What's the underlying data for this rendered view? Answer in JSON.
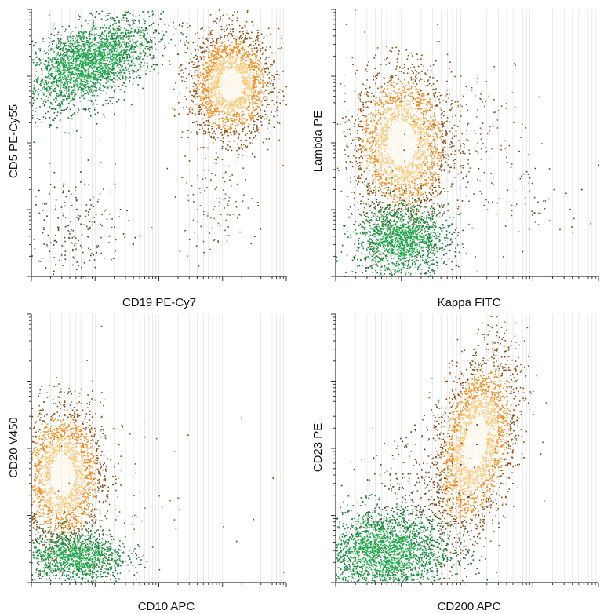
{
  "chart_data": [
    {
      "type": "scatter",
      "plot_style": "flow-cytometry density dot plot",
      "xlabel": "CD19 PE-Cy7",
      "ylabel": "CD5 PE-Cy55",
      "title": "",
      "x_scale": "log",
      "y_scale": "log",
      "xlim": [
        0,
        1
      ],
      "ylim": [
        0,
        1
      ],
      "grid": true,
      "populations": [
        {
          "color": "#1fa64a",
          "center": [
            0.22,
            0.8
          ],
          "spread": [
            0.14,
            0.07
          ],
          "rotation": 25,
          "count": 2600
        },
        {
          "color": "#f08a1c",
          "center": [
            0.78,
            0.72
          ],
          "spread": [
            0.08,
            0.1
          ],
          "rotation": 0,
          "count": 2400
        },
        {
          "color": "#5a4a2a",
          "center": [
            0.18,
            0.18
          ],
          "spread": [
            0.1,
            0.1
          ],
          "rotation": 0,
          "count": 220
        },
        {
          "color": "#8a6a3a",
          "center": [
            0.72,
            0.28
          ],
          "spread": [
            0.08,
            0.1
          ],
          "rotation": 0,
          "count": 120
        }
      ]
    },
    {
      "type": "scatter",
      "plot_style": "flow-cytometry density dot plot",
      "xlabel": "Kappa FITC",
      "ylabel": "Lambda PE",
      "title": "",
      "x_scale": "log",
      "y_scale": "log",
      "xlim": [
        0,
        1
      ],
      "ylim": [
        0,
        1
      ],
      "grid": true,
      "populations": [
        {
          "color": "#f08a1c",
          "center": [
            0.25,
            0.5
          ],
          "spread": [
            0.09,
            0.14
          ],
          "rotation": 0,
          "count": 2600
        },
        {
          "color": "#1fa64a",
          "center": [
            0.25,
            0.14
          ],
          "spread": [
            0.09,
            0.07
          ],
          "rotation": 0,
          "count": 1600
        },
        {
          "color": "#8a6a3a",
          "center": [
            0.52,
            0.55
          ],
          "spread": [
            0.12,
            0.14
          ],
          "rotation": 0,
          "count": 160
        },
        {
          "color": "#6a5a3a",
          "center": [
            0.75,
            0.28
          ],
          "spread": [
            0.1,
            0.08
          ],
          "rotation": 0,
          "count": 60
        }
      ]
    },
    {
      "type": "scatter",
      "plot_style": "flow-cytometry density dot plot",
      "xlabel": "CD10 APC",
      "ylabel": "CD20 V450",
      "title": "",
      "x_scale": "log",
      "y_scale": "log",
      "xlim": [
        0,
        1
      ],
      "ylim": [
        0,
        1
      ],
      "grid": true,
      "populations": [
        {
          "color": "#f08a1c",
          "center": [
            0.12,
            0.4
          ],
          "spread": [
            0.08,
            0.13
          ],
          "rotation": 0,
          "count": 2400
        },
        {
          "color": "#1fa64a",
          "center": [
            0.17,
            0.1
          ],
          "spread": [
            0.1,
            0.05
          ],
          "rotation": 0,
          "count": 1300
        },
        {
          "color": "#8a6a3a",
          "center": [
            0.35,
            0.3
          ],
          "spread": [
            0.2,
            0.15
          ],
          "rotation": 0,
          "count": 70
        }
      ]
    },
    {
      "type": "scatter",
      "plot_style": "flow-cytometry density dot plot",
      "xlabel": "CD200 APC",
      "ylabel": "CD23 PE",
      "title": "",
      "x_scale": "log",
      "y_scale": "log",
      "xlim": [
        0,
        1
      ],
      "ylim": [
        0,
        1
      ],
      "grid": true,
      "populations": [
        {
          "color": "#f08a1c",
          "center": [
            0.53,
            0.52
          ],
          "spread": [
            0.07,
            0.17
          ],
          "rotation": -12,
          "count": 2800
        },
        {
          "color": "#1fa64a",
          "center": [
            0.18,
            0.12
          ],
          "spread": [
            0.13,
            0.08
          ],
          "rotation": 0,
          "count": 2400
        },
        {
          "color": "#5a4a2a",
          "center": [
            0.3,
            0.38
          ],
          "spread": [
            0.1,
            0.1
          ],
          "rotation": 0,
          "count": 200
        }
      ]
    }
  ]
}
